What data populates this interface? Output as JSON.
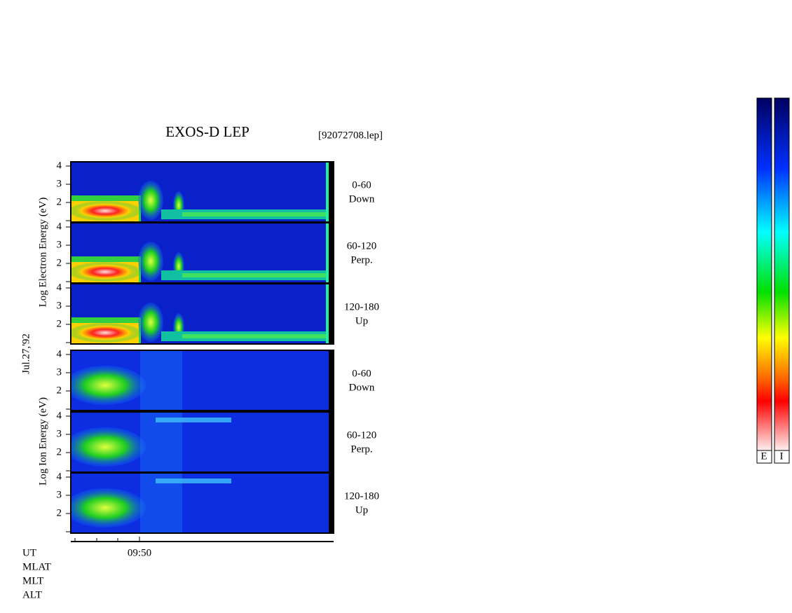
{
  "title": "EXOS-D LEP",
  "filename": "[92072708.lep]",
  "date": "Jul.27,'92",
  "electron": {
    "axis_label": "Log Electron Energy (eV)",
    "panels": [
      {
        "ticks": [
          "4",
          "3",
          "2"
        ],
        "angle": "0-60",
        "direction": "Down"
      },
      {
        "ticks": [
          "4",
          "3",
          "2"
        ],
        "angle": "60-120",
        "direction": "Perp."
      },
      {
        "ticks": [
          "4",
          "3",
          "2"
        ],
        "angle": "120-180",
        "direction": "Up"
      }
    ]
  },
  "ion": {
    "axis_label": "Log Ion Energy (eV)",
    "panels": [
      {
        "ticks": [
          "4",
          "3",
          "2"
        ],
        "angle": "0-60",
        "direction": "Down"
      },
      {
        "ticks": [
          "4",
          "3",
          "2"
        ],
        "angle": "60-120",
        "direction": "Perp."
      },
      {
        "ticks": [
          "4",
          "3",
          "2"
        ],
        "angle": "120-180",
        "direction": "Up"
      }
    ]
  },
  "time_axis": {
    "ticks": [
      "09:50"
    ]
  },
  "row_labels": [
    "UT",
    "MLAT",
    "MLT",
    "ALT"
  ],
  "colorbars": [
    "E",
    "I"
  ]
}
